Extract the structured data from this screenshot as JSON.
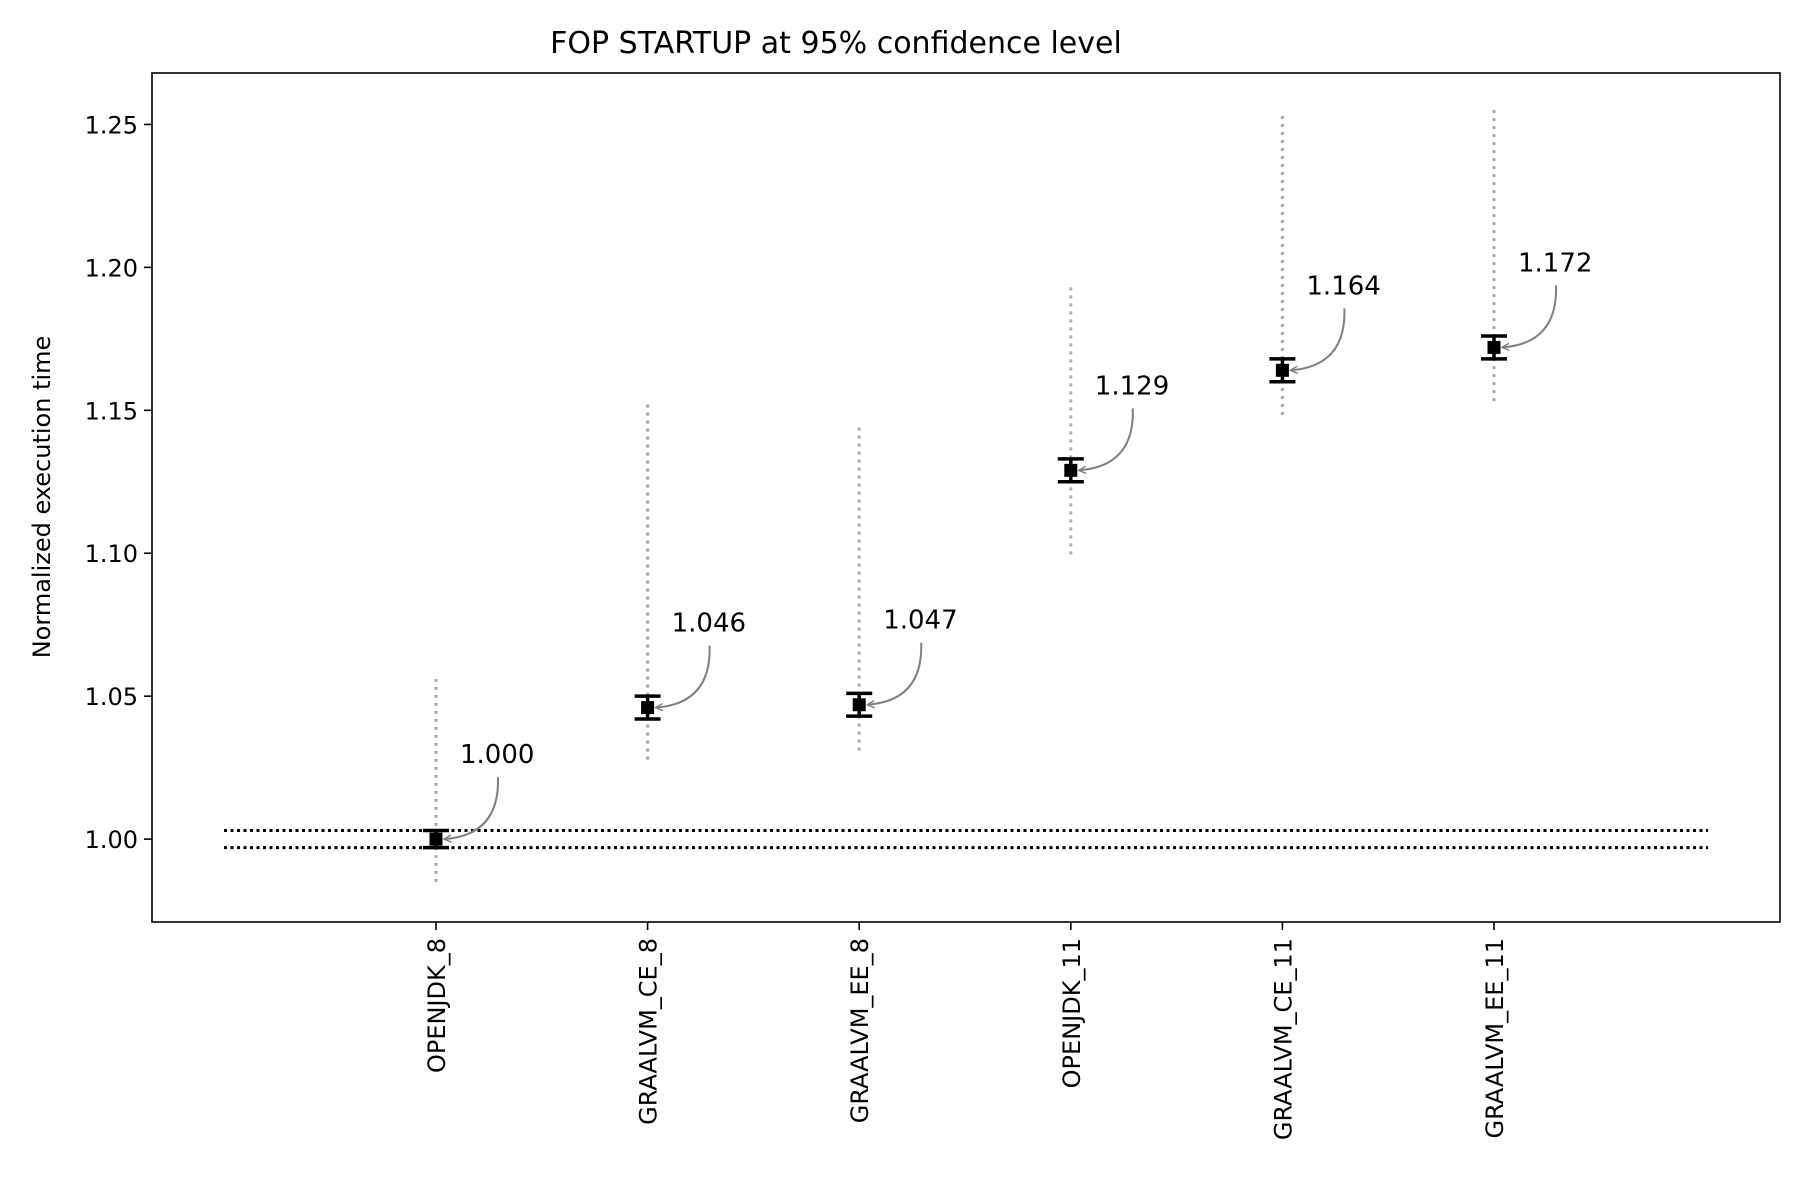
{
  "chart_data": {
    "type": "scatter",
    "title": "FOP STARTUP at 95% confidence level",
    "xlabel": "",
    "ylabel": "Normalized execution time",
    "categories": [
      "OPENJDK_8",
      "GRAALVM_CE_8",
      "GRAALVM_EE_8",
      "OPENJDK_11",
      "GRAALVM_CE_11",
      "GRAALVM_EE_11"
    ],
    "series": [
      {
        "values": [
          1.0,
          1.046,
          1.047,
          1.129,
          1.164,
          1.172
        ],
        "ci_low": [
          0.997,
          1.042,
          1.043,
          1.125,
          1.16,
          1.168
        ],
        "ci_high": [
          1.003,
          1.05,
          1.051,
          1.133,
          1.168,
          1.176
        ],
        "range_low": [
          0.985,
          1.027,
          1.031,
          1.098,
          1.147,
          1.153
        ],
        "range_high": [
          1.056,
          1.152,
          1.144,
          1.193,
          1.253,
          1.255
        ],
        "labels": [
          "1.000",
          "1.046",
          "1.047",
          "1.129",
          "1.164",
          "1.172"
        ]
      }
    ],
    "baseline_band": [
      0.997,
      1.003
    ],
    "yticks": [
      1.0,
      1.05,
      1.1,
      1.15,
      1.2,
      1.25
    ],
    "ytick_labels": [
      "1.00",
      "1.05",
      "1.10",
      "1.15",
      "1.20",
      "1.25"
    ],
    "ylim": [
      0.971,
      1.268
    ],
    "grid": false,
    "colors": {
      "marker": "#000000",
      "range": "#aaaaaa",
      "arrow": "#808080",
      "baseline": "#000000"
    }
  }
}
